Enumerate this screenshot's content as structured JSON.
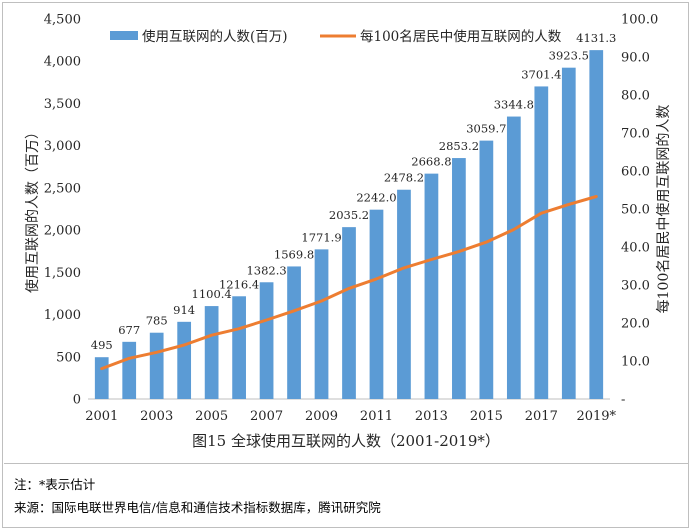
{
  "chart_data": {
    "type": "bar+line",
    "title": "图15 全球使用互联网的人数（2001-2019*）",
    "ylabel_left": "使用互联网的人数（百万）",
    "ylabel_right": "每100名居民中使用互联网的人数",
    "categories": [
      "2001",
      "2002",
      "2003",
      "2004",
      "2005",
      "2006",
      "2007",
      "2008",
      "2009",
      "2010",
      "2011",
      "2012",
      "2013",
      "2014",
      "2015",
      "2016",
      "2017",
      "2018",
      "2019*"
    ],
    "x_tick_labels": [
      "2001",
      "2003",
      "2005",
      "2007",
      "2009",
      "2011",
      "2013",
      "2015",
      "2017",
      "2019*"
    ],
    "ylim_left": [
      0,
      4500
    ],
    "left_ticks": [
      "0",
      "500",
      "1,000",
      "1,500",
      "2,000",
      "2,500",
      "3,000",
      "3,500",
      "4,000",
      "4,500"
    ],
    "ylim_right": [
      0,
      100
    ],
    "right_ticks": [
      "-",
      "10.0",
      "20.0",
      "30.0",
      "40.0",
      "50.0",
      "60.0",
      "70.0",
      "80.0",
      "90.0",
      "100.0"
    ],
    "series": [
      {
        "name": "使用互联网的人数(百万)",
        "type": "bar",
        "axis": "left",
        "color": "#5b9bd5",
        "values": [
          495,
          677,
          785,
          914,
          1100.4,
          1216.4,
          1382.3,
          1569.8,
          1771.9,
          2035.2,
          2242.0,
          2478.2,
          2668.8,
          2853.2,
          3059.7,
          3344.8,
          3701.4,
          3923.5,
          4131.3
        ],
        "data_labels": [
          "495",
          "677",
          "785",
          "914",
          "1100.4",
          "1216.4",
          "1382.3",
          "1569.8",
          "1771.9",
          "2035.2",
          "2242.0",
          "2478.2",
          "2668.8",
          "2853.2",
          "3059.7",
          "3344.8",
          "3701.4",
          "3923.5",
          "4131.3"
        ]
      },
      {
        "name": "每100名居民中使用互联网的人数",
        "type": "line",
        "axis": "right",
        "color": "#ed7d31",
        "values": [
          8.0,
          10.7,
          12.3,
          14.2,
          16.8,
          18.5,
          20.8,
          23.2,
          25.8,
          29.1,
          31.6,
          34.5,
          36.7,
          38.8,
          41.3,
          44.6,
          48.9,
          51.2,
          53.3
        ]
      }
    ],
    "legend": "top"
  },
  "notes": {
    "note1": "注：*表示估计",
    "source": "来源：国际电联世界电信/信息和通信技术指标数据库，腾讯研究院"
  }
}
